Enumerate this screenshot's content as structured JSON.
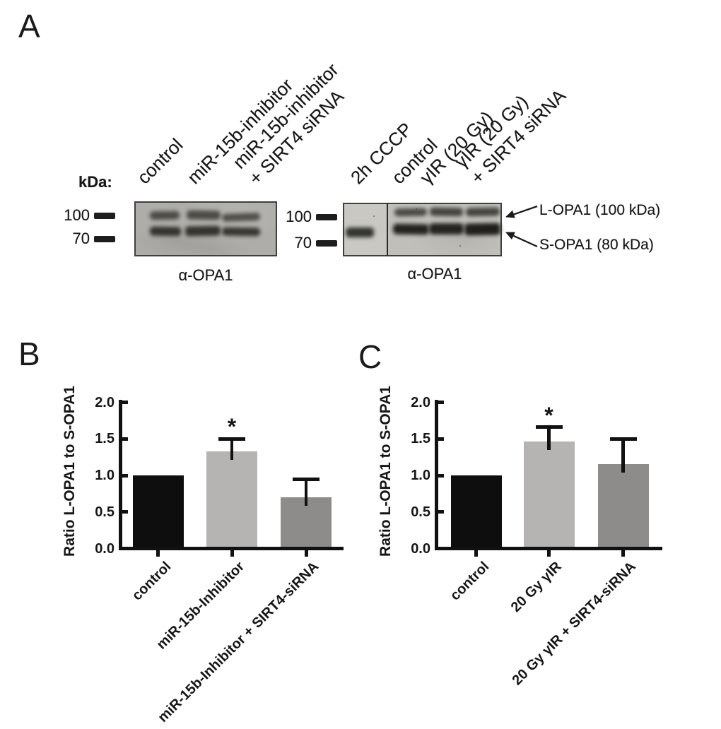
{
  "figure": {
    "panels": {
      "A": {
        "label": "A",
        "kda_label": "kDa:",
        "blot1": {
          "lanes": [
            [
              "control"
            ],
            [
              "miR-15b-inhibitor"
            ],
            [
              "miR-15b-inhibitor",
              "+ SIRT4 siRNA"
            ]
          ],
          "markers": [
            "100",
            "70"
          ],
          "caption": "α-OPA1"
        },
        "blot2": {
          "lanes": [
            [
              "2h CCCP"
            ],
            [
              "control"
            ],
            [
              "γIR (20 Gy)"
            ],
            [
              "γIR (20 Gy)",
              "+ SIRT4 siRNA"
            ]
          ],
          "markers": [
            "100",
            "70"
          ],
          "caption": "α-OPA1"
        },
        "annotations": {
          "l_opa1": "L-OPA1 (100 kDa)",
          "s_opa1": "S-OPA1 (80 kDa)"
        }
      },
      "B": {
        "label": "B"
      },
      "C": {
        "label": "C"
      }
    }
  },
  "chart_data": [
    {
      "panel": "B",
      "type": "bar",
      "categories": [
        "control",
        "miR-15b-Inhibitor",
        "miR-15b-Inhibitor + SIRT4-siRNA"
      ],
      "values": [
        1.0,
        1.33,
        0.7
      ],
      "errors_plus": [
        0,
        0.17,
        0.25
      ],
      "significance": [
        "",
        "*",
        ""
      ],
      "bar_colors": [
        "#0e0e0e",
        "#b5b4b2",
        "#8d8c8a"
      ],
      "title": "",
      "xlabel": "",
      "ylabel": "Ratio L-OPA1 to S-OPA1",
      "ylim": [
        0,
        2.0
      ],
      "yticks": [
        0,
        0.5,
        1.0,
        1.5,
        2.0
      ],
      "grid": false,
      "legend": "none"
    },
    {
      "panel": "C",
      "type": "bar",
      "categories": [
        "control",
        "20 Gy γIR",
        "20 Gy γIR + SIRT4-siRNA"
      ],
      "values": [
        1.0,
        1.46,
        1.15
      ],
      "errors_plus": [
        0,
        0.2,
        0.35
      ],
      "significance": [
        "",
        "*",
        ""
      ],
      "bar_colors": [
        "#0e0e0e",
        "#b5b4b2",
        "#8d8c8a"
      ],
      "title": "",
      "xlabel": "",
      "ylabel": "Ratio L-OPA1 to S-OPA1",
      "ylim": [
        0,
        2.0
      ],
      "yticks": [
        0,
        0.5,
        1.0,
        1.5,
        2.0
      ],
      "grid": false,
      "legend": "none"
    }
  ]
}
